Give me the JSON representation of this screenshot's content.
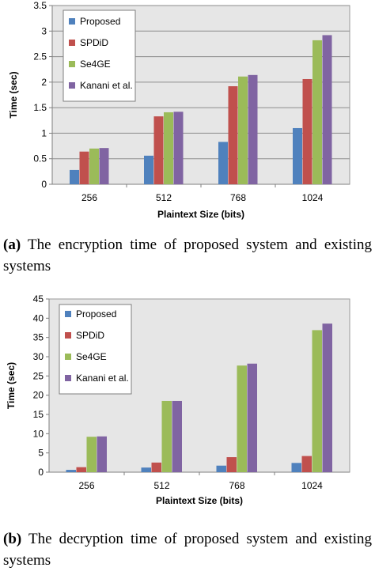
{
  "chart_data": [
    {
      "type": "bar",
      "categories": [
        "256",
        "512",
        "768",
        "1024"
      ],
      "series": [
        {
          "name": "Proposed",
          "color": "#4f81bd",
          "values": [
            0.28,
            0.56,
            0.83,
            1.1
          ]
        },
        {
          "name": "SPDiD",
          "color": "#c0504d",
          "values": [
            0.64,
            1.33,
            1.92,
            2.06
          ]
        },
        {
          "name": "Se4GE",
          "color": "#9bbb59",
          "values": [
            0.7,
            1.41,
            2.11,
            2.82
          ]
        },
        {
          "name": "Kanani et al.",
          "color": "#8064a2",
          "values": [
            0.71,
            1.42,
            2.14,
            2.92
          ]
        }
      ],
      "xlabel": "Plaintext Size (bits)",
      "ylabel": "Time (sec)",
      "ylim": [
        0,
        3.5
      ],
      "yticks": [
        "0",
        "0.5",
        "1",
        "1.5",
        "2",
        "2.5",
        "3",
        "3.5"
      ],
      "grid": true,
      "legend": "top-left"
    },
    {
      "type": "bar",
      "categories": [
        "256",
        "512",
        "768",
        "1024"
      ],
      "series": [
        {
          "name": "Proposed",
          "color": "#4f81bd",
          "values": [
            0.6,
            1.2,
            1.7,
            2.4
          ]
        },
        {
          "name": "SPDiD",
          "color": "#c0504d",
          "values": [
            1.3,
            2.5,
            3.9,
            4.2
          ]
        },
        {
          "name": "Se4GE",
          "color": "#9bbb59",
          "values": [
            9.2,
            18.5,
            27.7,
            36.9
          ]
        },
        {
          "name": "Kanani et al.",
          "color": "#8064a2",
          "values": [
            9.3,
            18.5,
            28.2,
            38.6
          ]
        }
      ],
      "xlabel": "Plaintext Size (bits)",
      "ylabel": "Time (sec)",
      "ylim": [
        0,
        45
      ],
      "yticks": [
        "0",
        "5",
        "10",
        "15",
        "20",
        "25",
        "30",
        "35",
        "40",
        "45"
      ],
      "grid": false,
      "legend": "top-left"
    }
  ],
  "captions": {
    "a_label": "(a)",
    "a_text": "The encryption time of proposed system and existing systems",
    "b_label": "(b)",
    "b_text": "The decryption time of proposed system and existing systems"
  }
}
